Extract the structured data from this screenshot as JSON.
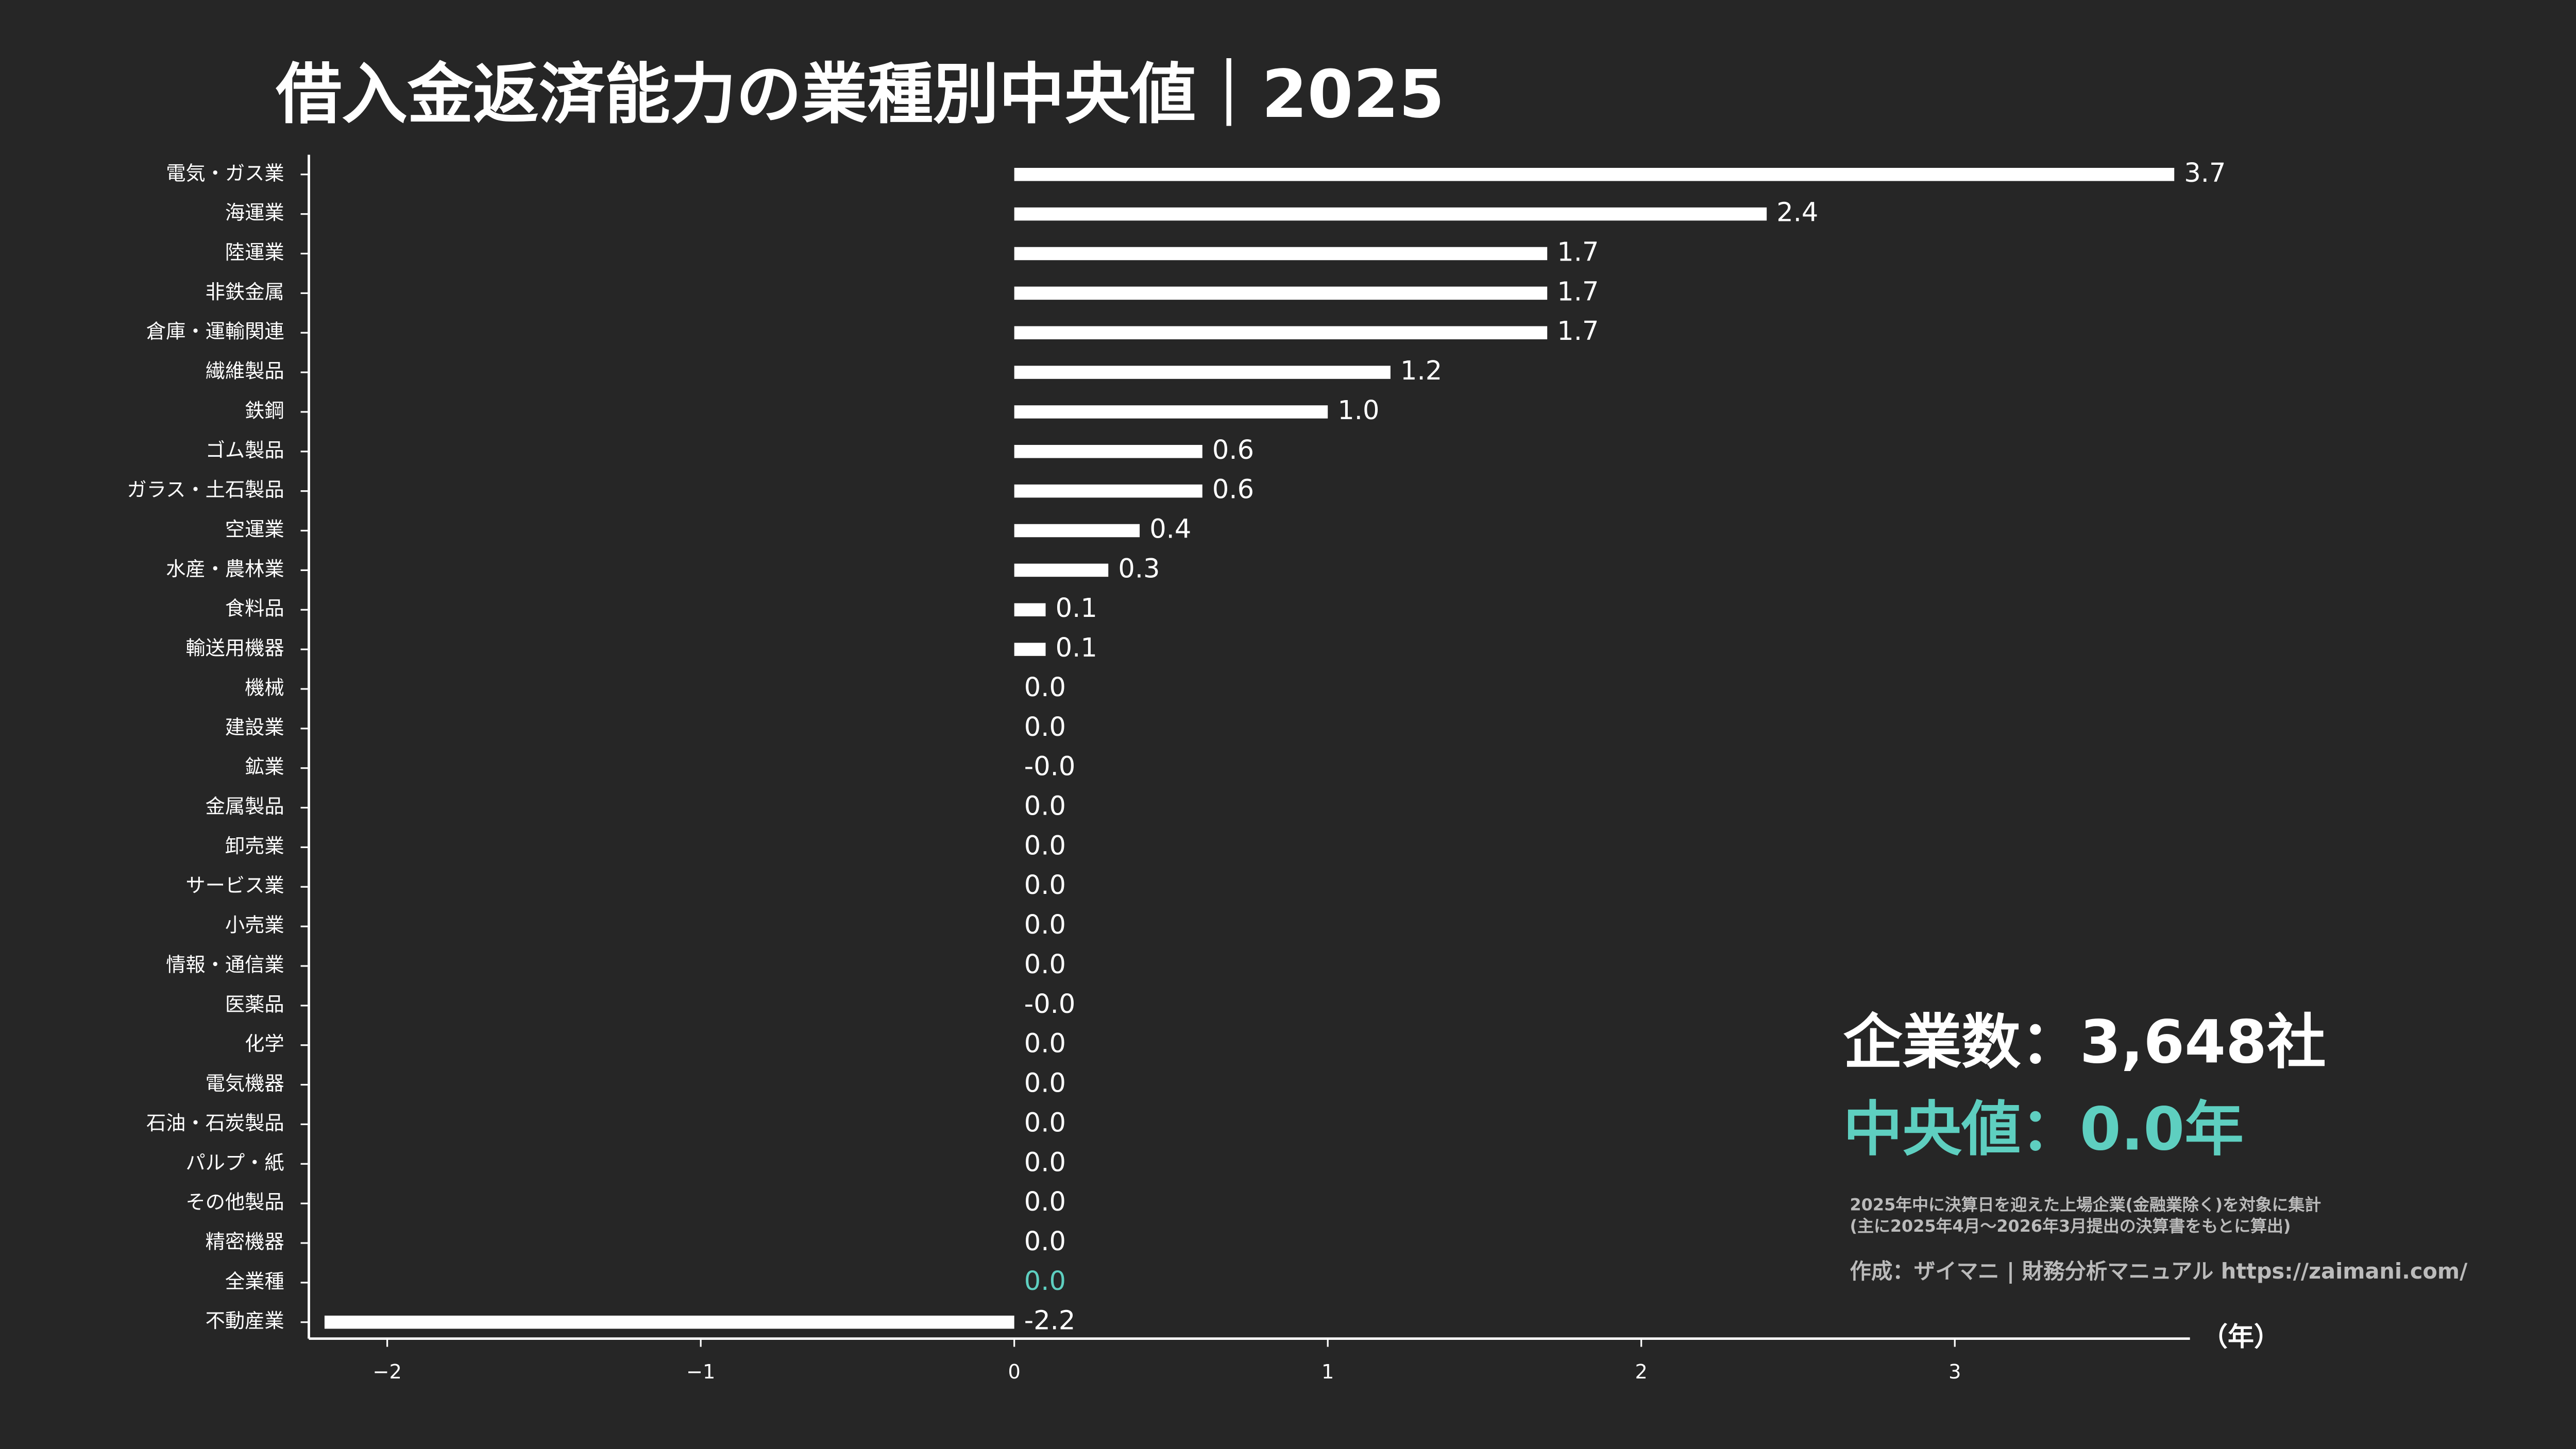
{
  "chart_data": {
    "type": "barh",
    "title": "借入金返済能力の業種別中央値｜2025",
    "categories": [
      "電気・ガス業",
      "海運業",
      "陸運業",
      "非鉄金属",
      "倉庫・運輸関連",
      "繊維製品",
      "鉄鋼",
      "ゴム製品",
      "ガラス・土石製品",
      "空運業",
      "水産・農林業",
      "食料品",
      "輸送用機器",
      "機械",
      "建設業",
      "鉱業",
      "金属製品",
      "卸売業",
      "サービス業",
      "小売業",
      "情報・通信業",
      "医薬品",
      "化学",
      "電気機器",
      "石油・石炭製品",
      "パルプ・紙",
      "その他製品",
      "精密機器",
      "全業種",
      "不動産業"
    ],
    "values": [
      3.7,
      2.4,
      1.7,
      1.7,
      1.7,
      1.2,
      1.0,
      0.6,
      0.6,
      0.4,
      0.3,
      0.1,
      0.1,
      0.0,
      0.0,
      0.0,
      0.0,
      0.0,
      0.0,
      0.0,
      0.0,
      0.0,
      0.0,
      0.0,
      0.0,
      0.0,
      0.0,
      0.0,
      0.0,
      -2.2
    ],
    "value_labels": [
      "3.7",
      "2.4",
      "1.7",
      "1.7",
      "1.7",
      "1.2",
      "1.0",
      "0.6",
      "0.6",
      "0.4",
      "0.3",
      "0.1",
      "0.1",
      "0.0",
      "0.0",
      "-0.0",
      "0.0",
      "0.0",
      "0.0",
      "0.0",
      "0.0",
      "-0.0",
      "0.0",
      "0.0",
      "0.0",
      "0.0",
      "0.0",
      "0.0",
      "0.0",
      "-2.2"
    ],
    "color": "#ffffff",
    "highlight_category": "全業種",
    "highlight_color": "#5ecfc0",
    "xlim": [
      -2.25,
      3.75
    ],
    "xticks": [
      {
        "value": -2,
        "label": "−2"
      },
      {
        "value": -1,
        "label": "−1"
      },
      0,
      1,
      2,
      3
    ],
    "x_label": "（年）",
    "annotations": [
      "企業数：3,648社",
      "中央値：0.0年",
      "2025年中に決算日を迎えた上場企業(金融業除く)を対象に集計",
      "(主に2025年4月〜2026年3月提出の決算書をもとに算出)",
      "作成：ザイマニ | 財務分析マニュアル https://zaimani.com/"
    ]
  }
}
